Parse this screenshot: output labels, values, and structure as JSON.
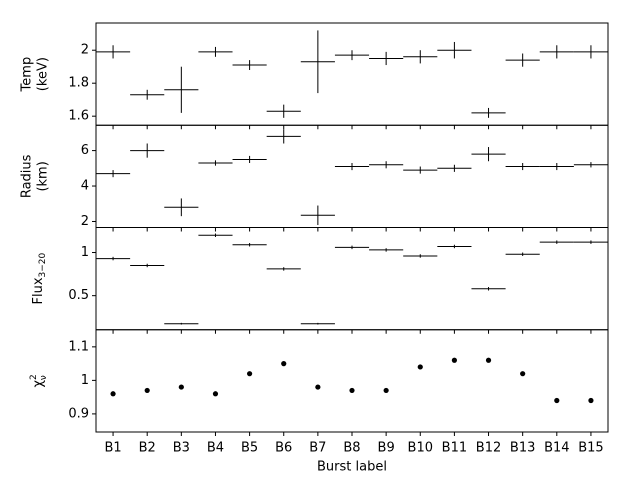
{
  "chart_data": [
    {
      "type": "errorbar",
      "ylabel_lines": [
        "Temp",
        "(keV)"
      ],
      "values": [
        1.99,
        1.73,
        1.76,
        1.99,
        1.91,
        1.63,
        1.93,
        1.97,
        1.95,
        1.96,
        2.0,
        1.62,
        1.94,
        1.99,
        1.99
      ],
      "yerr": [
        0.04,
        0.03,
        0.14,
        0.03,
        0.03,
        0.04,
        0.19,
        0.03,
        0.04,
        0.04,
        0.05,
        0.03,
        0.04,
        0.04,
        0.04
      ],
      "color": "#000000",
      "ylim": [
        1.545,
        2.165
      ],
      "yticks": [
        1.6,
        1.8,
        2.0
      ]
    },
    {
      "type": "errorbar",
      "ylabel_lines": [
        "Radius",
        "(km)"
      ],
      "values": [
        4.7,
        6.0,
        2.8,
        5.3,
        5.5,
        6.8,
        2.35,
        5.1,
        5.2,
        4.9,
        5.0,
        5.8,
        5.1,
        5.1,
        5.2
      ],
      "yerr": [
        0.2,
        0.4,
        0.5,
        0.15,
        0.2,
        0.4,
        0.55,
        0.2,
        0.2,
        0.2,
        0.2,
        0.4,
        0.2,
        0.2,
        0.15
      ],
      "color": "#000000",
      "ylim": [
        1.66,
        7.43
      ],
      "yticks": [
        2,
        4,
        6
      ]
    },
    {
      "type": "errorbar",
      "ylabel": "Flux",
      "ylabel_sub": "3−20",
      "values": [
        0.93,
        0.85,
        0.175,
        1.2,
        1.09,
        0.81,
        0.175,
        1.06,
        1.03,
        0.96,
        1.07,
        0.58,
        0.98,
        1.12,
        1.12
      ],
      "yerr": [
        0.02,
        0.02,
        0.01,
        0.02,
        0.02,
        0.02,
        0.01,
        0.02,
        0.02,
        0.02,
        0.02,
        0.02,
        0.02,
        0.02,
        0.02
      ],
      "color": "#000000",
      "ylim": [
        0.105,
        1.29
      ],
      "yticks": [
        0.5,
        1.0
      ]
    },
    {
      "type": "scatter",
      "ylabel": "χ",
      "ylabel_sup": "2",
      "ylabel_sub": "ν",
      "xlabel": "Burst label",
      "categories": [
        "B1",
        "B2",
        "B3",
        "B4",
        "B5",
        "B6",
        "B7",
        "B8",
        "B9",
        "B10",
        "B11",
        "B12",
        "B13",
        "B14",
        "B15"
      ],
      "values": [
        0.96,
        0.97,
        0.98,
        0.96,
        1.02,
        1.05,
        0.98,
        0.97,
        0.97,
        1.04,
        1.06,
        1.06,
        1.02,
        0.94,
        0.94
      ],
      "color": "#000000",
      "ylim": [
        0.846,
        1.151
      ],
      "yticks": [
        0.9,
        1.0,
        1.1
      ]
    }
  ]
}
